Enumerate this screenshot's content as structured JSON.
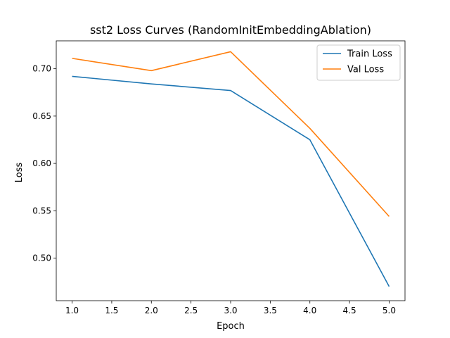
{
  "chart_data": {
    "type": "line",
    "title": "sst2 Loss Curves (RandomInitEmbeddingAblation)",
    "xlabel": "Epoch",
    "ylabel": "Loss",
    "xlim": [
      0.8,
      5.2
    ],
    "ylim": [
      0.455,
      0.7295
    ],
    "xticks": [
      1.0,
      1.5,
      2.0,
      2.5,
      3.0,
      3.5,
      4.0,
      4.5,
      5.0
    ],
    "xtick_labels": [
      "1.0",
      "1.5",
      "2.0",
      "2.5",
      "3.0",
      "3.5",
      "4.0",
      "4.5",
      "5.0"
    ],
    "yticks": [
      0.5,
      0.55,
      0.6,
      0.65,
      0.7
    ],
    "ytick_labels": [
      "0.50",
      "0.55",
      "0.60",
      "0.65",
      "0.70"
    ],
    "grid": false,
    "legend_position": "top-right",
    "x": [
      1,
      2,
      3,
      4,
      5
    ],
    "series": [
      {
        "name": "Train Loss",
        "color": "#1f77b4",
        "values": [
          0.692,
          0.684,
          0.677,
          0.625,
          0.47
        ]
      },
      {
        "name": "Val Loss",
        "color": "#ff7f0e",
        "values": [
          0.711,
          0.698,
          0.718,
          0.637,
          0.544
        ]
      }
    ]
  }
}
